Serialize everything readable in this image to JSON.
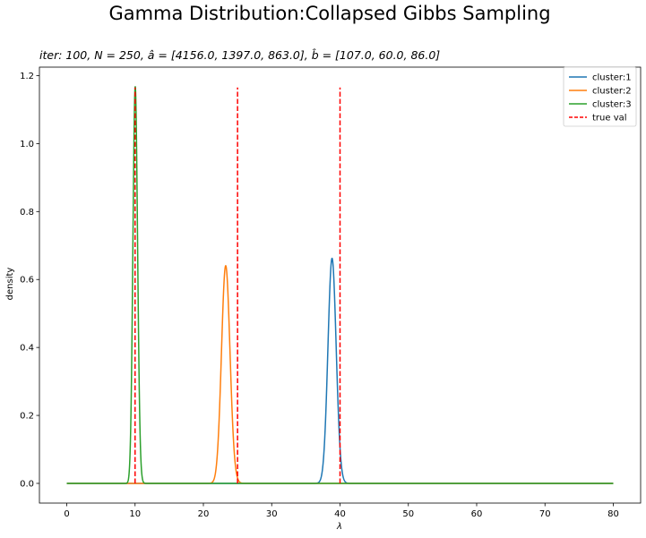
{
  "figure": {
    "suptitle": "Gamma Distribution:Collapsed Gibbs Sampling",
    "subtitle": "iter: 100, N = 250, â = [4156.0, 1397.0, 863.0], b̂ = [107.0, 60.0, 86.0]"
  },
  "chart_data": {
    "type": "line",
    "title": "iter: 100, N = 250, â = [4156.0, 1397.0, 863.0], b̂ = [107.0, 60.0, 86.0]",
    "xlabel": "λ",
    "ylabel": "density",
    "xlim": [
      -4,
      84
    ],
    "ylim": [
      -0.058,
      1.225
    ],
    "x_ticks": [
      0,
      10,
      20,
      30,
      40,
      50,
      60,
      70,
      80
    ],
    "y_ticks": [
      0.0,
      0.2,
      0.4,
      0.6,
      0.8,
      1.0,
      1.2
    ],
    "x_tick_labels": [
      "0",
      "10",
      "20",
      "30",
      "40",
      "50",
      "60",
      "70",
      "80"
    ],
    "y_tick_labels": [
      "0.0",
      "0.2",
      "0.4",
      "0.6",
      "0.8",
      "1.0",
      "1.2"
    ],
    "x_range": [
      0,
      80
    ],
    "grid": false,
    "legend_position": "top-right",
    "series": [
      {
        "name": "cluster:1",
        "color": "#1f77b4",
        "shape": 4156.0,
        "rate": 107.0,
        "style": "solid"
      },
      {
        "name": "cluster:2",
        "color": "#ff7f0e",
        "shape": 1397.0,
        "rate": 60.0,
        "style": "solid"
      },
      {
        "name": "cluster:3",
        "color": "#2ca02c",
        "shape": 863.0,
        "rate": 86.0,
        "style": "solid"
      }
    ],
    "reference_lines": {
      "name": "true val",
      "color": "#ff0000",
      "style": "dashed",
      "x": [
        40,
        25,
        10
      ],
      "y_top": 1.165
    }
  }
}
